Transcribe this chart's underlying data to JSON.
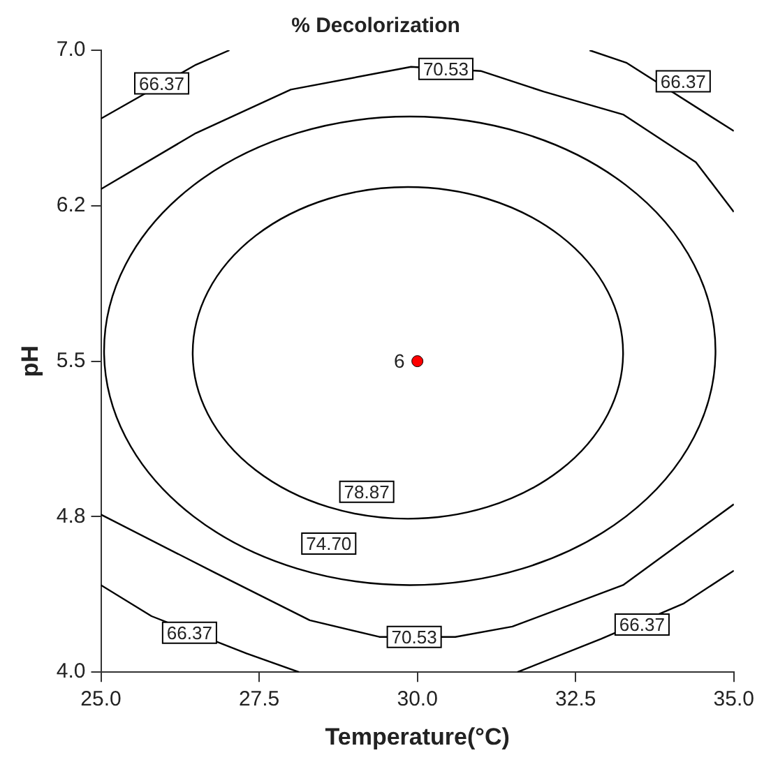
{
  "chart_data": {
    "type": "line",
    "title": "% Decolorization",
    "xlabel": "Temperature(°C)",
    "ylabel": "pH",
    "xlim": [
      25,
      35
    ],
    "ylim": [
      4,
      7
    ],
    "xticks": [
      {
        "value": 25,
        "label": "25.0"
      },
      {
        "value": 27.5,
        "label": "27.5"
      },
      {
        "value": 30,
        "label": "30.0"
      },
      {
        "value": 32.5,
        "label": "32.5"
      },
      {
        "value": 35,
        "label": "35.0"
      }
    ],
    "yticks": [
      {
        "value": 4,
        "label": "4.0"
      },
      {
        "value": 4.75,
        "label": "4.8"
      },
      {
        "value": 5.5,
        "label": "5.5"
      },
      {
        "value": 6.25,
        "label": "6.2"
      },
      {
        "value": 7,
        "label": "7.0"
      }
    ],
    "grid": false,
    "legend": false,
    "series": [
      {
        "color": "#000000",
        "x": [
          25,
          26.5,
          28,
          29.9,
          31,
          32,
          33.25,
          34.4,
          35
        ],
        "values": [
          6.33,
          6.6,
          6.81,
          6.92,
          6.9,
          6.8,
          6.69,
          6.46,
          6.22
        ]
      },
      {
        "color": "#000000",
        "x": [
          25,
          26.8,
          28.3,
          29.4,
          30.6,
          31.5,
          33.25,
          35
        ],
        "values": [
          4.76,
          4.48,
          4.25,
          4.17,
          4.17,
          4.22,
          4.42,
          4.81
        ]
      },
      {
        "color": "#000000",
        "x": [
          25,
          26.5,
          27.03
        ],
        "values": [
          6.67,
          6.93,
          7
        ]
      },
      {
        "color": "#000000",
        "x": [
          32.72,
          33.3,
          35
        ],
        "values": [
          7,
          6.94,
          6.61
        ]
      },
      {
        "color": "#000000",
        "x": [
          25,
          25.8,
          27.3,
          28.13
        ],
        "values": [
          4.42,
          4.27,
          4.09,
          4
        ]
      },
      {
        "color": "#000000",
        "x": [
          31.58,
          32.9,
          34.2,
          35
        ],
        "values": [
          4,
          4.16,
          4.33,
          4.49
        ]
      },
      {
        "type": "scatter",
        "color": "#ff0000",
        "marker": "circle",
        "x": [
          30
        ],
        "values": [
          5.5
        ],
        "value_labels": [
          "6"
        ]
      }
    ],
    "annotations": [
      {
        "text": "78.87",
        "x": 29.2,
        "y": 4.87
      },
      {
        "text": "74.70",
        "x": 28.6,
        "y": 4.62
      },
      {
        "text": "70.53",
        "x": 30.45,
        "y": 6.91
      },
      {
        "text": "70.53",
        "x": 29.95,
        "y": 4.17
      },
      {
        "text": "66.37",
        "x": 25.96,
        "y": 6.84
      },
      {
        "text": "66.37",
        "x": 34.2,
        "y": 6.85
      },
      {
        "text": "66.37",
        "x": 26.4,
        "y": 4.19
      },
      {
        "text": "66.37",
        "x": 33.55,
        "y": 4.23
      }
    ]
  }
}
